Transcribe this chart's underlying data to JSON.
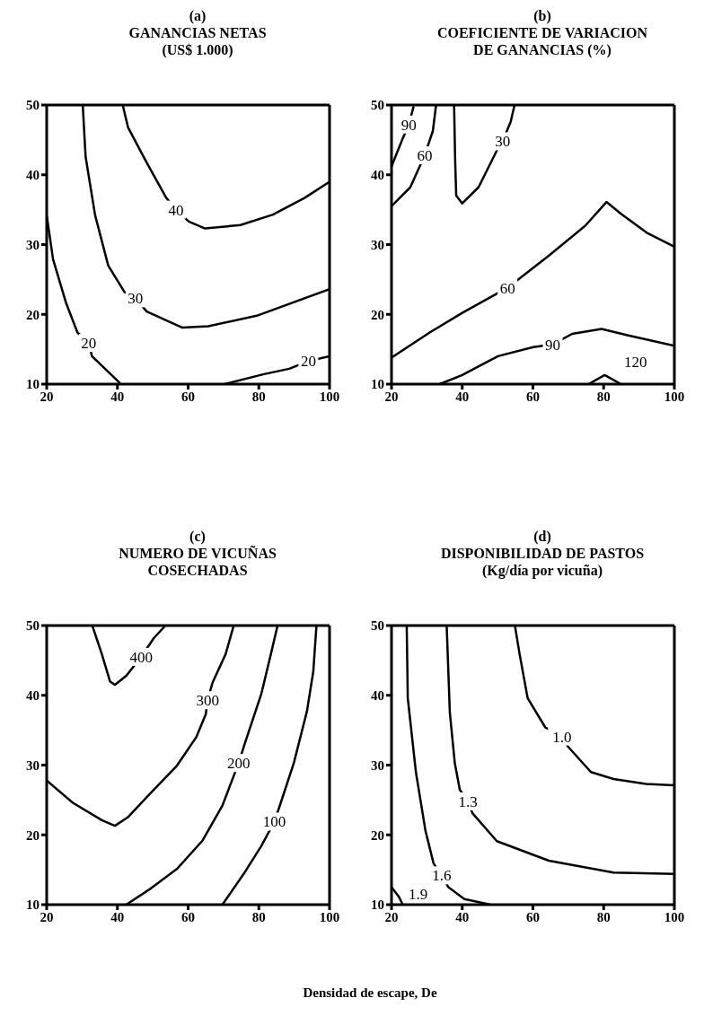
{
  "chart_data": [
    {
      "type": "line",
      "title": "(a)\nGANANCIAS NETAS\n(US$ 1.000)",
      "xlim": [
        20,
        100
      ],
      "xticks": [
        20,
        40,
        60,
        80,
        100
      ],
      "ylim": [
        10,
        50
      ],
      "yticks": [
        10,
        20,
        30,
        40,
        50
      ],
      "line_style": "solid",
      "series": [
        {
          "color": "#000000",
          "x": [
            41.5,
            43,
            48,
            53.8,
            56.6,
            60.2,
            64.8,
            74.8,
            84,
            93,
            100
          ],
          "values": [
            50,
            46.8,
            42,
            36.7,
            35,
            33.3,
            32.3,
            32.8,
            34.3,
            36.7,
            39
          ]
        },
        {
          "color": "#000000",
          "x": [
            30.2,
            31,
            33.7,
            37.4,
            42,
            45.1,
            48.3,
            58.4,
            65.7,
            79.4,
            100
          ],
          "values": [
            50,
            42.6,
            34.2,
            27,
            23.2,
            22.3,
            20.4,
            18.1,
            18.3,
            19.8,
            23.6
          ]
        },
        {
          "color": "#000000",
          "x": [
            20,
            21.8,
            25.5,
            28.7,
            31.9,
            32.8,
            40.6
          ],
          "values": [
            34.2,
            27.9,
            21.6,
            17.4,
            15.9,
            14,
            10.2
          ]
        },
        {
          "color": "#000000",
          "x": [
            70.3,
            81.2,
            88.6,
            94,
            100
          ],
          "values": [
            10,
            11.4,
            12.2,
            13.3,
            14
          ]
        }
      ],
      "annotations": [
        {
          "text": "40",
          "x": 56.6,
          "y": 35
        },
        {
          "text": "30",
          "x": 45.1,
          "y": 22.3
        },
        {
          "text": "20",
          "x": 31.9,
          "y": 15.9
        },
        {
          "text": "20",
          "x": 94,
          "y": 13.3
        }
      ]
    },
    {
      "type": "line",
      "title": "(b)\nCOEFICIENTE DE VARIACION\nDE GANANCIAS (%)",
      "xlim": [
        20,
        100
      ],
      "xticks": [
        20,
        40,
        60,
        80,
        100
      ],
      "ylim": [
        10,
        50
      ],
      "yticks": [
        10,
        20,
        30,
        40,
        50
      ],
      "line_style": "solid",
      "series": [
        {
          "color": "#000000",
          "x": [
            20,
            23,
            24.9,
            26.2
          ],
          "values": [
            41.2,
            45,
            47.2,
            49.7
          ]
        },
        {
          "color": "#000000",
          "x": [
            20,
            25.3,
            29.4,
            31.7,
            32.6
          ],
          "values": [
            35.5,
            38.2,
            42.8,
            46.3,
            50
          ]
        },
        {
          "color": "#000000",
          "x": [
            37.7,
            38,
            38.3,
            40,
            44.6,
            50.1,
            51.4,
            53.7,
            54.8
          ],
          "values": [
            50,
            42.1,
            37,
            35.9,
            38.2,
            43.8,
            44.8,
            47.6,
            50
          ]
        },
        {
          "color": "#000000",
          "x": [
            20,
            30.8,
            40,
            52.8,
            64.7,
            74.8,
            80.8,
            84.9,
            92.2,
            100
          ],
          "values": [
            13.8,
            17.4,
            20.2,
            23.8,
            28.5,
            32.7,
            36.1,
            34.4,
            31.7,
            29.7
          ]
        },
        {
          "color": "#000000",
          "x": [
            33.6,
            40,
            50.1,
            60.1,
            65.6,
            71.1,
            79.4,
            86.7,
            100
          ],
          "values": [
            10,
            11.3,
            14,
            15.3,
            15.7,
            17.2,
            17.9,
            17,
            15.5
          ]
        },
        {
          "color": "#000000",
          "x": [
            75.7,
            80.3,
            84.9
          ],
          "values": [
            10,
            11.3,
            10
          ]
        }
      ],
      "annotations": [
        {
          "text": "90",
          "x": 24.9,
          "y": 47.2
        },
        {
          "text": "60",
          "x": 29.4,
          "y": 42.8
        },
        {
          "text": "30",
          "x": 51.4,
          "y": 44.8
        },
        {
          "text": "60",
          "x": 52.8,
          "y": 23.8
        },
        {
          "text": "90",
          "x": 65.6,
          "y": 15.7
        },
        {
          "text": "120",
          "x": 89,
          "y": 13.2
        }
      ]
    },
    {
      "type": "line",
      "title": "(c)\nNUMERO DE VICUÑAS\nCOSECHADAS",
      "xlim": [
        20,
        100
      ],
      "xticks": [
        20,
        40,
        60,
        80,
        100
      ],
      "ylim": [
        10,
        50
      ],
      "yticks": [
        10,
        20,
        30,
        40,
        50
      ],
      "line_style": "solid",
      "series": [
        {
          "color": "#000000",
          "x": [
            32.9,
            35.6,
            37.9,
            39.3,
            42.5,
            46.7,
            50.3,
            53.6
          ],
          "values": [
            50,
            45.9,
            42,
            41.5,
            42.8,
            45.5,
            48.2,
            50
          ]
        },
        {
          "color": "#000000",
          "x": [
            20,
            27.4,
            35.6,
            39.3,
            42.9,
            49.4,
            56.8,
            62.3,
            65,
            65.5,
            66.9,
            70.6,
            72.9
          ],
          "values": [
            27.8,
            24.6,
            22.1,
            21.3,
            22.5,
            26,
            29.9,
            34,
            37.3,
            39.3,
            41.8,
            45.9,
            50
          ]
        },
        {
          "color": "#000000",
          "x": [
            42.5,
            49.4,
            56.8,
            64.1,
            69.7,
            72.4,
            74.3,
            76.1,
            80.7,
            83.4,
            85.3
          ],
          "values": [
            10,
            12.3,
            15.1,
            19.2,
            24.2,
            27.8,
            30.3,
            33.2,
            40.2,
            45.9,
            50
          ]
        },
        {
          "color": "#000000",
          "x": [
            69.7,
            76.1,
            80.7,
            84.4,
            86.2,
            89.9,
            93.6,
            95.4,
            96.3
          ],
          "values": [
            10,
            14.7,
            18.4,
            21.9,
            24.6,
            30.3,
            37.7,
            43.4,
            50
          ]
        }
      ],
      "annotations": [
        {
          "text": "400",
          "x": 46.7,
          "y": 45.5
        },
        {
          "text": "300",
          "x": 65.5,
          "y": 39.3
        },
        {
          "text": "200",
          "x": 74.3,
          "y": 30.3
        },
        {
          "text": "100",
          "x": 84.4,
          "y": 21.9
        }
      ]
    },
    {
      "type": "line",
      "title": "(d)\nDISPONIBILIDAD DE PASTOS\n(Kg/día por vicuña)",
      "xlim": [
        20,
        100
      ],
      "xticks": [
        20,
        40,
        60,
        80,
        100
      ],
      "ylim": [
        10,
        50
      ],
      "yticks": [
        10,
        20,
        30,
        40,
        50
      ],
      "line_style": "solid",
      "series": [
        {
          "color": "#000000",
          "x": [
            54.9,
            56.2,
            58.5,
            63.5,
            68.2,
            70,
            76.4,
            82.8,
            92,
            100
          ],
          "values": [
            50,
            46,
            39.6,
            35.4,
            34.1,
            32.6,
            29,
            28,
            27.3,
            27.1
          ]
        },
        {
          "color": "#000000",
          "x": [
            35.6,
            36.5,
            37.9,
            39.3,
            41.6,
            42.9,
            49.8,
            64.5,
            82.8,
            100
          ],
          "values": [
            50,
            37.5,
            30.3,
            26.5,
            24.8,
            23.1,
            19.1,
            16.3,
            14.6,
            14.4
          ]
        },
        {
          "color": "#000000",
          "x": [
            24.3,
            24.6,
            26.9,
            29.6,
            31.9,
            34.2,
            36.1,
            40.6,
            48
          ],
          "values": [
            50,
            39.6,
            29,
            20.6,
            15.9,
            14.2,
            12.5,
            10.8,
            10
          ]
        },
        {
          "color": "#000000",
          "x": [
            20,
            22,
            23.2
          ],
          "values": [
            12.5,
            11.2,
            10
          ]
        }
      ],
      "annotations": [
        {
          "text": "1.0",
          "x": 68.2,
          "y": 34.1
        },
        {
          "text": "1.3",
          "x": 41.6,
          "y": 24.8
        },
        {
          "text": "1.6",
          "x": 34.2,
          "y": 14.2
        },
        {
          "text": "1.9",
          "x": 27.5,
          "y": 11.6
        },
        "Densidad de escape, De"
      ]
    }
  ]
}
